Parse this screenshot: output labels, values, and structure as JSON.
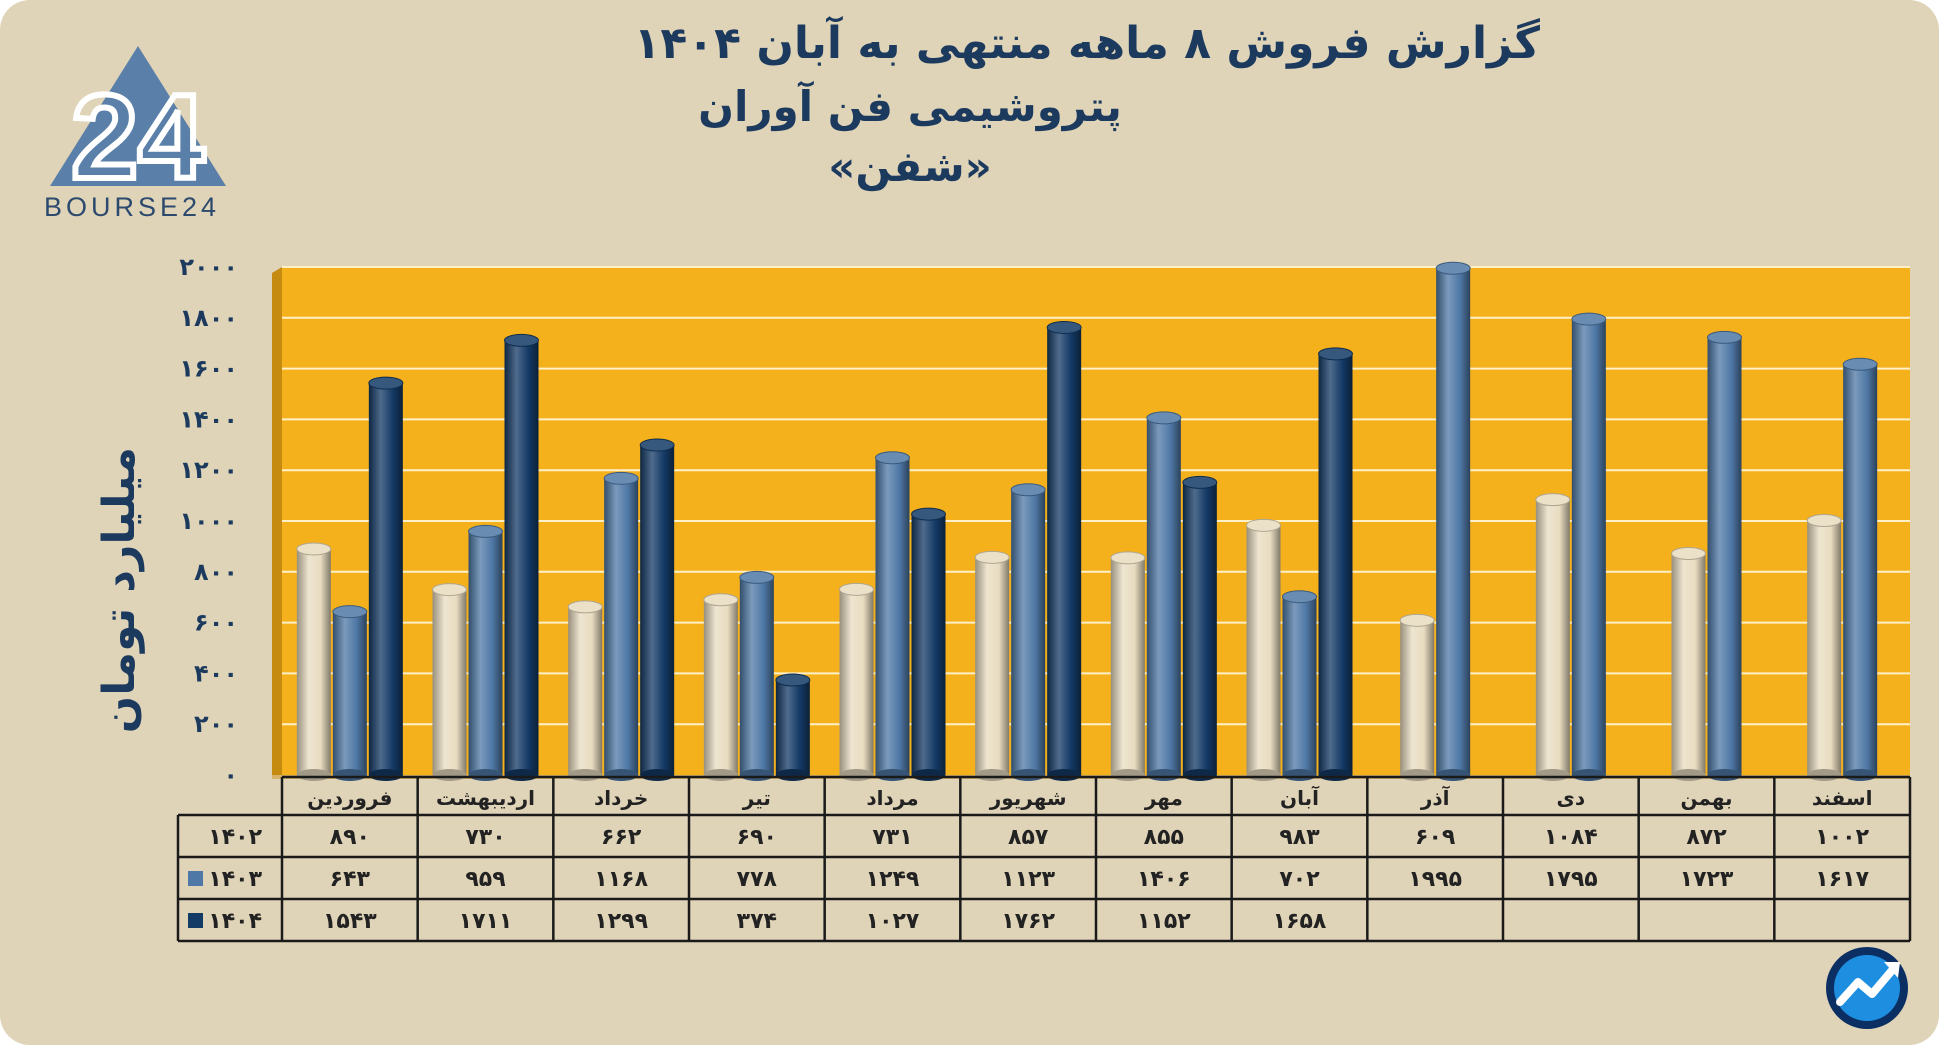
{
  "logo": {
    "text": "BOURSE24",
    "mark": "24"
  },
  "title": {
    "line1": "گزارش  فروش ۸ ماهه منتهی به آبان ۱۴۰۴",
    "line2": "پتروشیمی فن آوران",
    "line3": "«شفن»"
  },
  "colors": {
    "background": "#e0d4b8",
    "plot": "#f5b11c",
    "s1402": "#e8dcc0",
    "s1403": "#4f78a6",
    "s1404": "#143a66",
    "text": "#1c3a5e"
  },
  "chart_data": {
    "type": "bar",
    "ylabel": "میلیارد تومان",
    "ylim": [
      0,
      2000
    ],
    "yticks": [
      0,
      200,
      400,
      600,
      800,
      1000,
      1200,
      1400,
      1600,
      1800,
      2000
    ],
    "ytick_labels": [
      "۰",
      "۲۰۰",
      "۴۰۰",
      "۶۰۰",
      "۸۰۰",
      "۱۰۰۰",
      "۱۲۰۰",
      "۱۴۰۰",
      "۱۶۰۰",
      "۱۸۰۰",
      "۲۰۰۰"
    ],
    "grid": true,
    "categories": [
      "فروردین",
      "اردیبهشت",
      "خرداد",
      "تیر",
      "مرداد",
      "شهریور",
      "مهر",
      "آبان",
      "آذر",
      "دی",
      "بهمن",
      "اسفند"
    ],
    "series": [
      {
        "name": "۱۴۰۲",
        "values": [
          890,
          730,
          662,
          690,
          731,
          857,
          855,
          983,
          609,
          1084,
          872,
          1002
        ],
        "labels": [
          "۸۹۰",
          "۷۳۰",
          "۶۶۲",
          "۶۹۰",
          "۷۳۱",
          "۸۵۷",
          "۸۵۵",
          "۹۸۳",
          "۶۰۹",
          "۱۰۸۴",
          "۸۷۲",
          "۱۰۰۲"
        ]
      },
      {
        "name": "۱۴۰۳",
        "values": [
          643,
          959,
          1168,
          778,
          1249,
          1123,
          1406,
          702,
          1995,
          1795,
          1723,
          1617
        ],
        "labels": [
          "۶۴۳",
          "۹۵۹",
          "۱۱۶۸",
          "۷۷۸",
          "۱۲۴۹",
          "۱۱۲۳",
          "۱۴۰۶",
          "۷۰۲",
          "۱۹۹۵",
          "۱۷۹۵",
          "۱۷۲۳",
          "۱۶۱۷"
        ]
      },
      {
        "name": "۱۴۰۴",
        "values": [
          1543,
          1711,
          1299,
          374,
          1027,
          1762,
          1152,
          1658,
          null,
          null,
          null,
          null
        ],
        "labels": [
          "۱۵۴۳",
          "۱۷۱۱",
          "۱۲۹۹",
          "۳۷۴",
          "۱۰۲۷",
          "۱۷۶۲",
          "۱۱۵۲",
          "۱۶۵۸",
          "",
          "",
          "",
          ""
        ]
      }
    ]
  },
  "watermark_icon": "chart-trend-icon"
}
